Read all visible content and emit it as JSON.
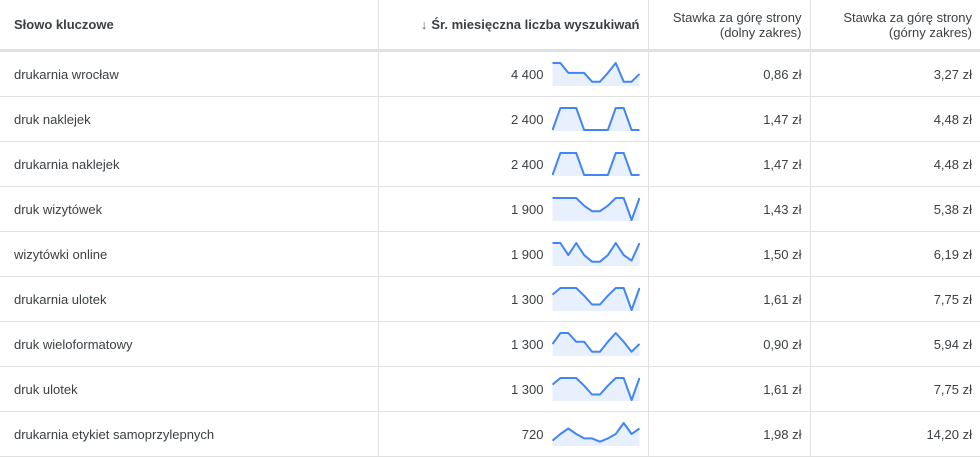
{
  "columns": {
    "keyword": "Słowo kluczowe",
    "volume": "Śr. miesięczna liczba wyszukiwań",
    "bid_low_1": "Stawka za górę strony",
    "bid_low_2": "(dolny zakres)",
    "bid_high_1": "Stawka za górę strony",
    "bid_high_2": "(górny zakres)",
    "sort_icon": "arrow-down-icon"
  },
  "colors": {
    "trend_line": "#4285f4",
    "trend_fill": "#e8f0fe"
  },
  "rows": [
    {
      "keyword": "drukarnia wrocław",
      "volume": "4 400",
      "low": "0,86 zł",
      "high": "3,27 zł",
      "trend": [
        1,
        1,
        0.55,
        0.55,
        0.55,
        0.15,
        0.15,
        0.55,
        1,
        0.15,
        0.15,
        0.5
      ]
    },
    {
      "keyword": "druk naklejek",
      "volume": "2 400",
      "low": "1,47 zł",
      "high": "4,48 zł",
      "trend": [
        0,
        1,
        1,
        1,
        0,
        0,
        0,
        0,
        1,
        1,
        0,
        0
      ]
    },
    {
      "keyword": "drukarnia naklejek",
      "volume": "2 400",
      "low": "1,47 zł",
      "high": "4,48 zł",
      "trend": [
        0,
        1,
        1,
        1,
        0,
        0,
        0,
        0,
        1,
        1,
        0,
        0
      ]
    },
    {
      "keyword": "druk wizytówek",
      "volume": "1 900",
      "low": "1,43 zł",
      "high": "5,38 zł",
      "trend": [
        1,
        1,
        1,
        1,
        0.65,
        0.4,
        0.4,
        0.65,
        1,
        1,
        0,
        1
      ]
    },
    {
      "keyword": "wizytówki online",
      "volume": "1 900",
      "low": "1,50 zł",
      "high": "6,19 zł",
      "trend": [
        1,
        1,
        0.45,
        1,
        0.45,
        0.15,
        0.15,
        0.45,
        1,
        0.45,
        0.2,
        1
      ]
    },
    {
      "keyword": "drukarnia ulotek",
      "volume": "1 300",
      "low": "1,61 zł",
      "high": "7,75 zł",
      "trend": [
        0.7,
        1,
        1,
        1,
        0.65,
        0.25,
        0.25,
        0.65,
        1,
        1,
        0,
        1
      ]
    },
    {
      "keyword": "druk wieloformatowy",
      "volume": "1 300",
      "low": "0,90 zł",
      "high": "5,94 zł",
      "trend": [
        0.5,
        1,
        1,
        0.6,
        0.6,
        0.15,
        0.15,
        0.6,
        1,
        0.6,
        0.15,
        0.5
      ]
    },
    {
      "keyword": "druk ulotek",
      "volume": "1 300",
      "low": "1,61 zł",
      "high": "7,75 zł",
      "trend": [
        0.7,
        1,
        1,
        1,
        0.65,
        0.25,
        0.25,
        0.65,
        1,
        1,
        0,
        1
      ]
    },
    {
      "keyword": "drukarnia etykiet samoprzylepnych",
      "volume": "720",
      "low": "1,98 zł",
      "high": "14,20 zł",
      "trend": [
        0.2,
        0.5,
        0.75,
        0.5,
        0.3,
        0.3,
        0.15,
        0.3,
        0.5,
        1,
        0.5,
        0.75
      ]
    }
  ]
}
